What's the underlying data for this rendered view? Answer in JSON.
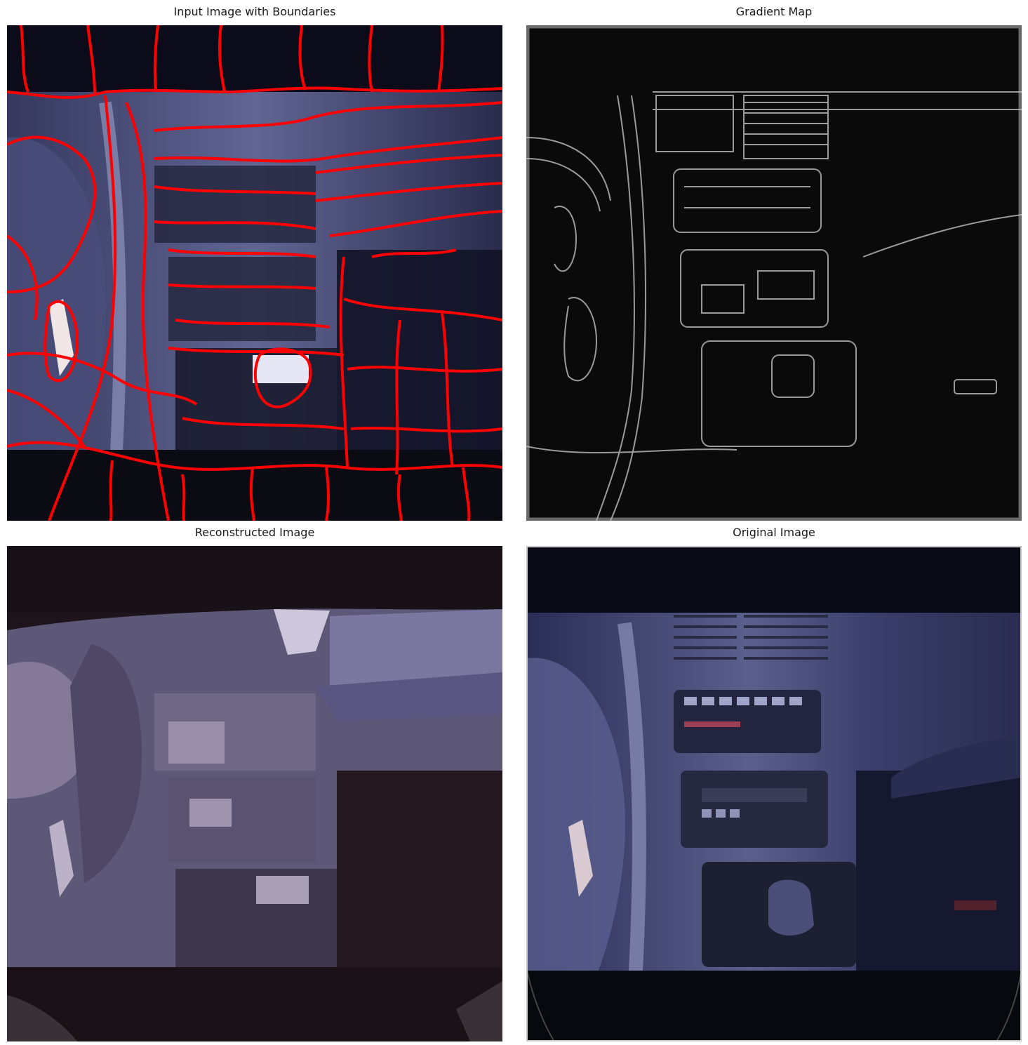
{
  "panels": [
    {
      "title": "Input Image with Boundaries"
    },
    {
      "title": "Gradient Map"
    },
    {
      "title": "Reconstructed Image"
    },
    {
      "title": "Original Image"
    }
  ],
  "colors": {
    "boundary": "#ff0000",
    "background": "#ffffff",
    "cabin_dark": "#0b0b1a",
    "dash_blue": "#5a5f8c",
    "gradient_bg": "#0a0a0a",
    "recon_dark": "#1e141c",
    "recon_mid": "#6a6485"
  }
}
